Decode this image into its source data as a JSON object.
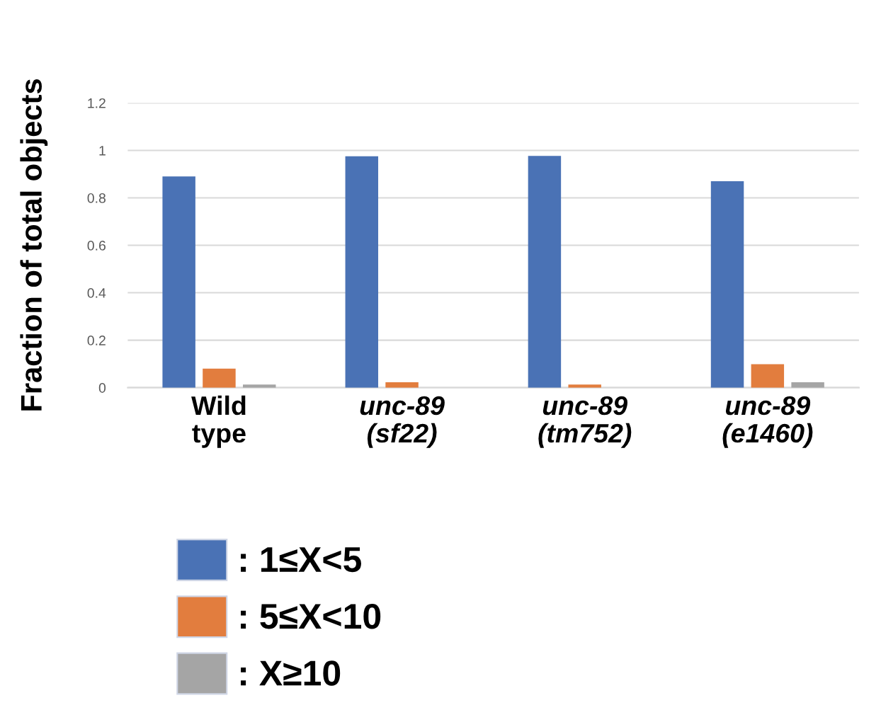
{
  "chart_data": {
    "type": "bar",
    "ylabel": "Fraction of total objects",
    "categories": [
      "Wild\ntype",
      "unc-89\n(sf22)",
      "unc-89\n(tm752)",
      "unc-89\n(e1460)"
    ],
    "series": [
      {
        "name": ": 1≤X<5",
        "color": "#4a72b5",
        "values": [
          0.89,
          0.975,
          0.977,
          0.87
        ]
      },
      {
        "name": ": 5≤X<10",
        "color": "#e27d3e",
        "values": [
          0.08,
          0.023,
          0.013,
          0.099
        ]
      },
      {
        "name": ": X≥10",
        "color": "#a5a5a5",
        "values": [
          0.013,
          0,
          0,
          0.023
        ]
      }
    ],
    "ylim": [
      0,
      1.2
    ],
    "yticks": [
      0,
      0.2,
      0.4,
      0.6,
      0.8,
      1,
      1.2
    ],
    "grid": "y",
    "legend": "bottom"
  }
}
